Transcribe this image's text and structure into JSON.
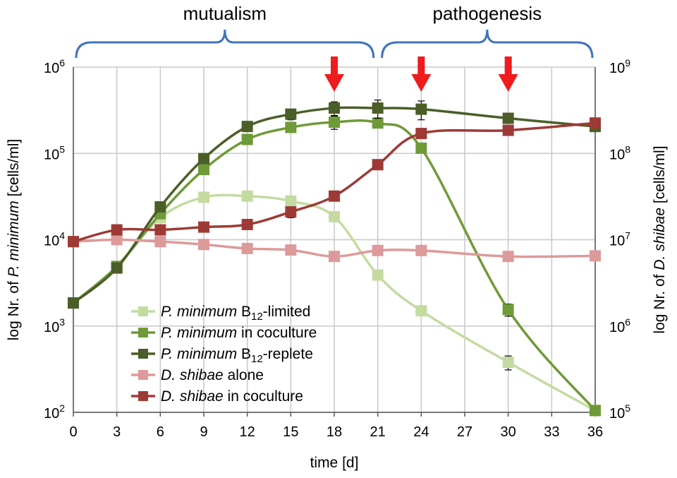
{
  "chart_data": {
    "type": "line",
    "xlabel": "time [d]",
    "ylabel_left_prefix": "log Nr. of ",
    "ylabel_left_species": "P. minimum",
    "ylabel_left_suffix": " [cells/ml]",
    "ylabel_right_prefix": "log Nr. of ",
    "ylabel_right_species": "D. shibae",
    "ylabel_right_suffix": " [cells/ml]",
    "xlim": [
      0,
      36
    ],
    "xticks": [
      "0",
      "3",
      "6",
      "9",
      "12",
      "15",
      "18",
      "21",
      "24",
      "27",
      "30",
      "33",
      "36"
    ],
    "ylim_left_log10": [
      2,
      6
    ],
    "ylim_right_log10": [
      5,
      9
    ],
    "yticks_left": [
      {
        "base": "10",
        "exp": "2"
      },
      {
        "base": "10",
        "exp": "3"
      },
      {
        "base": "10",
        "exp": "4"
      },
      {
        "base": "10",
        "exp": "5"
      },
      {
        "base": "10",
        "exp": "6"
      }
    ],
    "yticks_right": [
      {
        "base": "10",
        "exp": "5"
      },
      {
        "base": "10",
        "exp": "6"
      },
      {
        "base": "10",
        "exp": "7"
      },
      {
        "base": "10",
        "exp": "8"
      },
      {
        "base": "10",
        "exp": "9"
      }
    ],
    "phases": [
      {
        "label": "mutualism",
        "from": 0,
        "to": 21
      },
      {
        "label": "pathogenesis",
        "from": 21,
        "to": 36
      }
    ],
    "arrows_at_day": [
      18,
      24,
      30
    ],
    "series": [
      {
        "name_species": "P. minimum",
        "name_rest": " B",
        "name_sub": "12",
        "name_tail": "-limited",
        "axis": "left",
        "color": "#c4dba0",
        "x": [
          0,
          3,
          6,
          9,
          12,
          15,
          18,
          21,
          24,
          30,
          36
        ],
        "y": [
          1850,
          4900,
          18000,
          31000,
          32000,
          28000,
          18500,
          3900,
          1500,
          380,
          105
        ],
        "err": [
          0,
          0,
          0,
          0,
          0,
          0,
          0,
          0,
          0,
          70,
          0
        ]
      },
      {
        "name_species": "P. minimum",
        "name_rest": " in coculture",
        "name_sub": "",
        "name_tail": "",
        "axis": "left",
        "color": "#6f9a38",
        "x": [
          0,
          3,
          6,
          9,
          12,
          15,
          18,
          21,
          24,
          30,
          36
        ],
        "y": [
          1850,
          4900,
          20000,
          65000,
          145000,
          200000,
          230000,
          225000,
          115000,
          1550,
          105
        ],
        "err": [
          0,
          0,
          0,
          0,
          0,
          0,
          40000,
          0,
          0,
          250,
          0
        ]
      },
      {
        "name_species": "P. minimum",
        "name_rest": " B",
        "name_sub": "12",
        "name_tail": "-replete",
        "axis": "left",
        "color": "#4b5e28",
        "x": [
          0,
          3,
          6,
          9,
          12,
          15,
          18,
          21,
          24,
          30,
          36
        ],
        "y": [
          1850,
          4700,
          24000,
          87000,
          205000,
          285000,
          335000,
          335000,
          325000,
          255000,
          205000
        ],
        "err": [
          0,
          0,
          0,
          0,
          0,
          40000,
          60000,
          80000,
          80000,
          30000,
          0
        ]
      },
      {
        "name_species": "D. shibae",
        "name_rest": " alone",
        "name_sub": "",
        "name_tail": "",
        "axis": "right",
        "color": "#dd9a9a",
        "x": [
          0,
          3,
          6,
          9,
          12,
          15,
          18,
          21,
          24,
          30,
          36
        ],
        "y": [
          9500000,
          10000000,
          9500000,
          8800000,
          7900000,
          7600000,
          6400000,
          7500000,
          7500000,
          6400000,
          6500000
        ],
        "err": [
          0,
          0,
          0,
          0,
          0,
          0,
          0,
          0,
          0,
          0,
          0
        ]
      },
      {
        "name_species": "D. shibae",
        "name_rest": " in coculture",
        "name_sub": "",
        "name_tail": "",
        "axis": "right",
        "color": "#9e3a36",
        "x": [
          0,
          3,
          6,
          9,
          12,
          15,
          18,
          21,
          24,
          30,
          36
        ],
        "y": [
          9500000,
          13000000,
          13000000,
          14000000,
          15000000,
          21000000,
          32000000,
          74000000,
          170000000,
          185000000,
          225000000
        ],
        "err": [
          0,
          0,
          0,
          0,
          0,
          3000000,
          0,
          0,
          20000000,
          0,
          0
        ]
      }
    ]
  }
}
